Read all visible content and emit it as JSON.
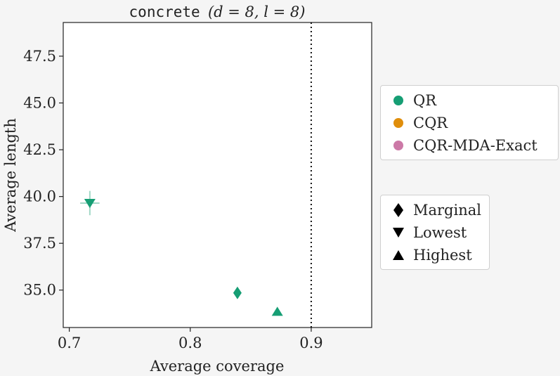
{
  "chart_data": {
    "type": "scatter",
    "title_prefix": "concrete",
    "title_suffix": "(d = 8, l = 8)",
    "xlabel": "Average coverage",
    "ylabel": "Average length",
    "xlim": [
      0.695,
      0.95
    ],
    "ylim": [
      33.0,
      49.3
    ],
    "xticks": [
      0.7,
      0.8,
      0.9
    ],
    "xtick_labels": [
      "0.7",
      "0.8",
      "0.9"
    ],
    "yticks": [
      35.0,
      37.5,
      40.0,
      42.5,
      45.0,
      47.5
    ],
    "ytick_labels": [
      "35.0",
      "37.5",
      "40.0",
      "42.5",
      "45.0",
      "47.5"
    ],
    "reference_line": {
      "x": 0.9,
      "style": "dotted"
    },
    "grid": false,
    "series": [
      {
        "name": "QR",
        "color": "#169e74",
        "points": [
          {
            "group": "Marginal",
            "marker": "diamond",
            "x": 0.839,
            "y": 34.85,
            "x_err": 0.0,
            "y_err": 0.0
          },
          {
            "group": "Lowest",
            "marker": "triangle-down",
            "x": 0.717,
            "y": 39.65,
            "x_err": 0.008,
            "y_err": 0.65
          },
          {
            "group": "Highest",
            "marker": "triangle-up",
            "x": 0.872,
            "y": 33.85,
            "x_err": 0.0,
            "y_err": 0.0
          }
        ]
      },
      {
        "name": "CQR",
        "color": "#e08e0b",
        "points": []
      },
      {
        "name": "CQR-MDA-Exact",
        "color": "#cc79a7",
        "points": []
      }
    ],
    "color_legend": {
      "placement": "right",
      "entries": [
        {
          "label": "QR",
          "color": "#169e74"
        },
        {
          "label": "CQR",
          "color": "#e08e0b"
        },
        {
          "label": "CQR-MDA-Exact",
          "color": "#cc79a7"
        }
      ]
    },
    "marker_legend": {
      "placement": "right",
      "entries": [
        {
          "label": "Marginal",
          "marker": "diamond"
        },
        {
          "label": "Lowest",
          "marker": "triangle-down"
        },
        {
          "label": "Highest",
          "marker": "triangle-up"
        }
      ]
    }
  }
}
